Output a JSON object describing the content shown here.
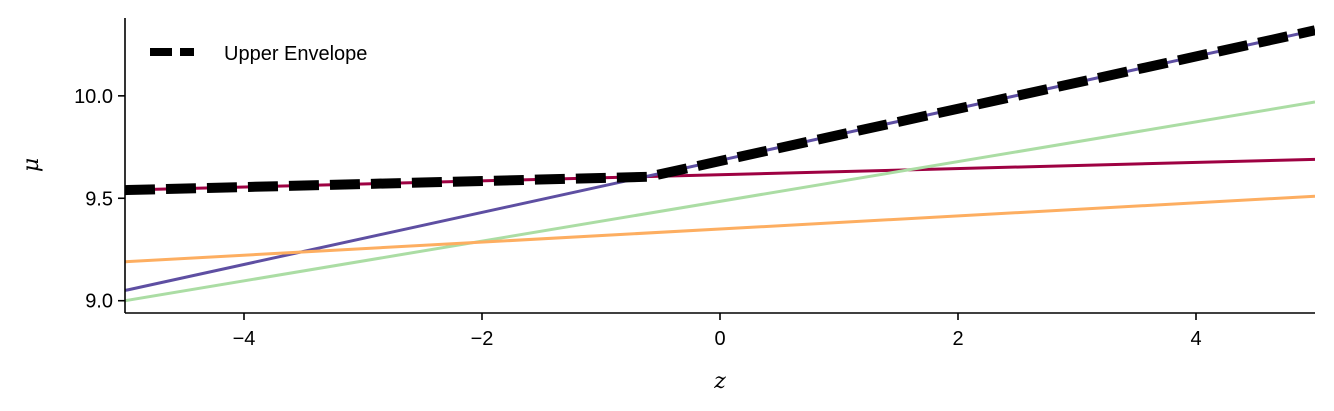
{
  "chart_data": {
    "type": "line",
    "title": "",
    "xlabel": "z",
    "ylabel": "μ",
    "xlim": [
      -5,
      5
    ],
    "ylim": [
      8.94,
      10.38
    ],
    "xticks": [
      -4,
      -2,
      0,
      2,
      4
    ],
    "xtick_labels": [
      "−4",
      "−2",
      "0",
      "2",
      "4"
    ],
    "yticks": [
      9.0,
      9.5,
      10.0
    ],
    "ytick_labels": [
      "9.0",
      "9.5",
      "10.0"
    ],
    "grid": false,
    "legend": {
      "placement": "top-left",
      "entries": [
        "Upper Envelope"
      ]
    },
    "series": [
      {
        "color": "#9e0142",
        "style": "solid",
        "x": [
          -5,
          5
        ],
        "y": [
          9.54,
          9.69
        ]
      },
      {
        "color": "#5e4fa2",
        "style": "solid",
        "x": [
          -5,
          5
        ],
        "y": [
          9.05,
          10.32
        ]
      },
      {
        "color": "#abdda4",
        "style": "solid",
        "x": [
          -5,
          5
        ],
        "y": [
          9.0,
          9.97
        ]
      },
      {
        "color": "#fdae61",
        "style": "solid",
        "x": [
          -5,
          5
        ],
        "y": [
          9.19,
          9.51
        ]
      },
      {
        "name": "Upper Envelope",
        "color": "#000000",
        "style": "dashed",
        "x": [
          -5,
          -0.6,
          5
        ],
        "y": [
          9.54,
          9.605,
          10.32
        ]
      }
    ]
  }
}
